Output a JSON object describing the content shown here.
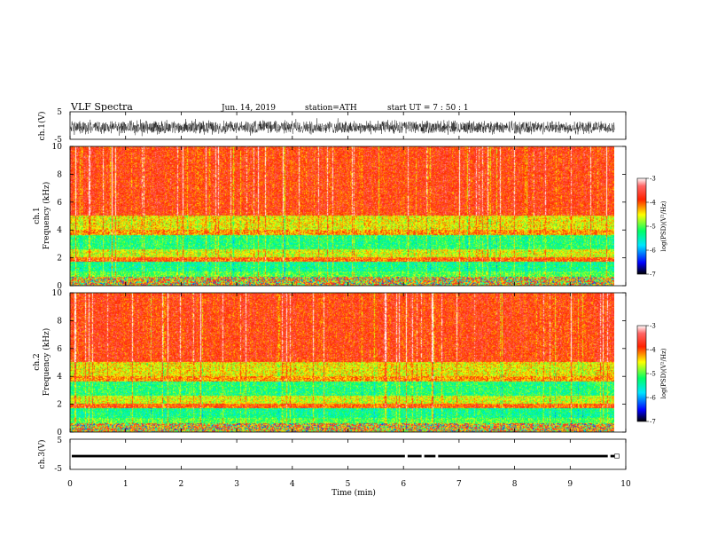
{
  "header": {
    "title": "VLF  Spectra",
    "date": "Jun. 14, 2019",
    "station": "station=ATH",
    "start": "start  UT  =   7 : 50 : 1"
  },
  "chart_data": [
    {
      "type": "line",
      "ylabel": "ch.1(V)",
      "ylim": [
        -5,
        5
      ],
      "yticks": [
        "5",
        "-5"
      ],
      "xlim": [
        0,
        10
      ],
      "description_value_range": [
        -3.2,
        2.0
      ]
    },
    {
      "type": "heatmap",
      "ylabel": "ch.1",
      "ylabel2": "Frequency  (kHz)",
      "ylim": [
        0,
        10
      ],
      "yticks": [
        "0",
        "2",
        "4",
        "6",
        "8",
        "10"
      ],
      "xlim": [
        0,
        10
      ],
      "bands_khz": [
        {
          "from": 0.0,
          "to": 0.6,
          "level": "mixed"
        },
        {
          "from": 0.6,
          "to": 1.0,
          "level": -5.0
        },
        {
          "from": 1.0,
          "to": 1.7,
          "level": -5.3
        },
        {
          "from": 1.7,
          "to": 2.0,
          "level": -4.0
        },
        {
          "from": 2.0,
          "to": 2.6,
          "level": -4.6
        },
        {
          "from": 2.6,
          "to": 3.6,
          "level": -5.2
        },
        {
          "from": 3.6,
          "to": 4.0,
          "level": -4.2
        },
        {
          "from": 4.0,
          "to": 5.0,
          "level": -4.5
        },
        {
          "from": 5.0,
          "to": 10.0,
          "level": -3.8
        }
      ],
      "colorbar": {
        "label": "log(PSD)(V²/Hz)",
        "ticks": [
          "-3",
          "-4",
          "-5",
          "-6",
          "-7"
        ],
        "range": [
          -7,
          -3
        ]
      }
    },
    {
      "type": "heatmap",
      "ylabel": "ch.2",
      "ylabel2": "Frequency  (kHz)",
      "ylim": [
        0,
        10
      ],
      "yticks": [
        "0",
        "2",
        "4",
        "6",
        "8",
        "10"
      ],
      "xlim": [
        0,
        10
      ],
      "bands_khz": [
        {
          "from": 0.0,
          "to": 0.6,
          "level": "mixed"
        },
        {
          "from": 0.6,
          "to": 1.0,
          "level": -5.0
        },
        {
          "from": 1.0,
          "to": 1.7,
          "level": -5.3
        },
        {
          "from": 1.7,
          "to": 2.0,
          "level": -4.0
        },
        {
          "from": 2.0,
          "to": 2.6,
          "level": -4.6
        },
        {
          "from": 2.6,
          "to": 3.6,
          "level": -5.2
        },
        {
          "from": 3.6,
          "to": 4.0,
          "level": -4.2
        },
        {
          "from": 4.0,
          "to": 5.0,
          "level": -4.5
        },
        {
          "from": 5.0,
          "to": 10.0,
          "level": -3.8
        }
      ],
      "colorbar": {
        "label": "log(PSD)(V²/Hz)",
        "ticks": [
          "-3",
          "-4",
          "-5",
          "-6",
          "-7"
        ],
        "range": [
          -7,
          -3
        ]
      }
    },
    {
      "type": "line",
      "ylabel": "ch.3(V)",
      "ylim": [
        -5,
        5
      ],
      "yticks": [
        "5",
        "-5"
      ],
      "xlim": [
        0,
        10
      ],
      "level": -0.6,
      "end_min": 9.8
    }
  ],
  "xaxis": {
    "xlabel": "Time  (min)",
    "ticks": [
      "0",
      "1",
      "2",
      "3",
      "4",
      "5",
      "6",
      "7",
      "8",
      "9",
      "10"
    ]
  },
  "colormap": [
    "#000000",
    "#0000ff",
    "#00e5ff",
    "#00ff66",
    "#ffff00",
    "#ff2200",
    "#ffffff"
  ]
}
